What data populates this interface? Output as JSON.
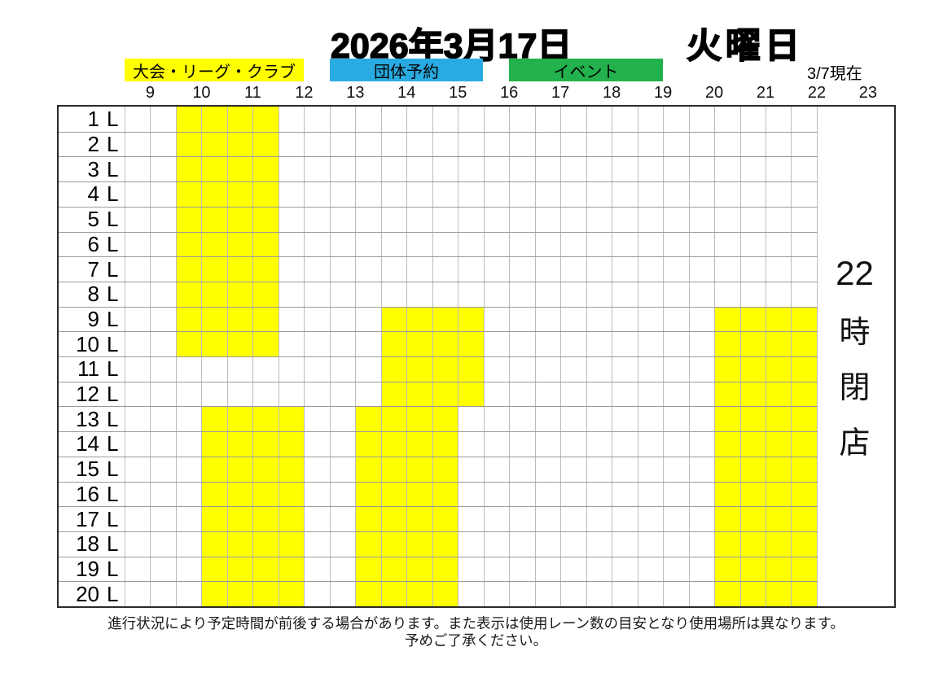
{
  "header": {
    "date": "2026年3月17日",
    "weekday": "火曜日",
    "as_of_note": "3/7現在"
  },
  "legend": [
    {
      "name": "tournament-league-club",
      "label": "大会・リーグ・クラブ",
      "color": "#ffff00",
      "text_color": "#000000"
    },
    {
      "name": "group-reservation",
      "label": "団体予約",
      "color": "#29abe2",
      "text_color": "#000000"
    },
    {
      "name": "event",
      "label": "イベント",
      "color": "#22b14c",
      "text_color": "#000000"
    }
  ],
  "schedule": {
    "lane_numbers": [
      "1",
      "2",
      "3",
      "4",
      "5",
      "6",
      "7",
      "8",
      "9",
      "10",
      "11",
      "12",
      "13",
      "14",
      "15",
      "16",
      "17",
      "18",
      "19",
      "20"
    ],
    "lane_suffix": "L"
  },
  "closing_notice": {
    "text": "22時閉店",
    "stack": [
      "22",
      "時",
      "閉",
      "店"
    ]
  },
  "footer": {
    "line1": "進行状況により予定時間が前後する場合があります。また表示は使用レーン数の目安となり使用場所は異なります。",
    "line2": "予めご了承ください。"
  },
  "chart_data": {
    "type": "table",
    "title": "2026年3月17日 火曜日",
    "subtitle": "3/7現在",
    "x_axis": {
      "unit": "hour",
      "ticks": [
        9,
        10,
        11,
        12,
        13,
        14,
        15,
        16,
        17,
        18,
        19,
        20,
        21,
        22,
        23
      ],
      "grid_start": 8.5,
      "grid_end": 22,
      "minor_step": 0.5
    },
    "y_axis": {
      "unit": "lane",
      "categories": [
        "1 L",
        "2 L",
        "3 L",
        "4 L",
        "5 L",
        "6 L",
        "7 L",
        "8 L",
        "9 L",
        "10 L",
        "11 L",
        "12 L",
        "13 L",
        "14 L",
        "15 L",
        "16 L",
        "17 L",
        "18 L",
        "19 L",
        "20 L"
      ]
    },
    "legend_entries": [
      "大会・リーグ・クラブ",
      "団体予約",
      "イベント"
    ],
    "blocks": [
      {
        "category": "大会・リーグ・クラブ",
        "color": "#ffff00",
        "lane_start": 1,
        "lane_end": 10,
        "time_start": 9.5,
        "time_end": 11.5
      },
      {
        "category": "大会・リーグ・クラブ",
        "color": "#ffff00",
        "lane_start": 9,
        "lane_end": 12,
        "time_start": 13.5,
        "time_end": 15.5
      },
      {
        "category": "大会・リーグ・クラブ",
        "color": "#ffff00",
        "lane_start": 13,
        "lane_end": 20,
        "time_start": 10,
        "time_end": 12
      },
      {
        "category": "大会・リーグ・クラブ",
        "color": "#ffff00",
        "lane_start": 13,
        "lane_end": 20,
        "time_start": 13,
        "time_end": 15
      },
      {
        "category": "大会・リーグ・クラブ",
        "color": "#ffff00",
        "lane_start": 9,
        "lane_end": 20,
        "time_start": 20,
        "time_end": 22
      }
    ],
    "annotations": [
      {
        "text": "22時閉店",
        "position": "right-margin"
      },
      {
        "text": "3/7現在",
        "position": "top-right"
      }
    ]
  }
}
